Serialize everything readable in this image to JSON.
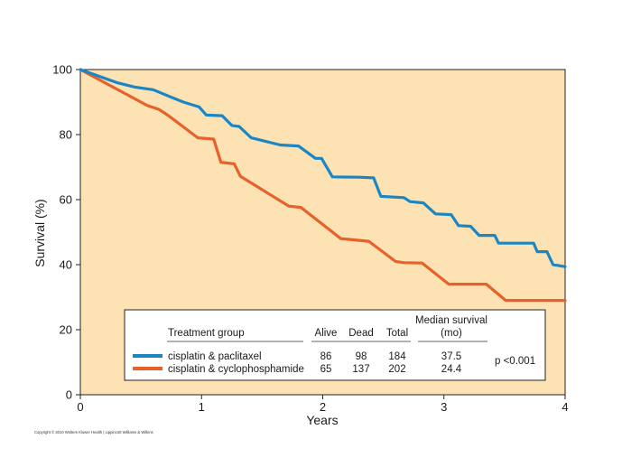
{
  "chart_data": {
    "type": "line",
    "title": "",
    "xlabel": "Years",
    "ylabel": "Survival (%)",
    "xlim": [
      0,
      4
    ],
    "ylim": [
      0,
      100
    ],
    "xticks": [
      "0",
      "1",
      "2",
      "3",
      "4"
    ],
    "yticks": [
      "0",
      "20",
      "40",
      "60",
      "80",
      "100"
    ],
    "grid": false,
    "colors": {
      "background": "#fde3b4",
      "paclitaxel": "#1b86c4",
      "cyclophosphamide": "#e8602a"
    },
    "series": [
      {
        "name": "cisplatin & paclitaxel",
        "color": "#1b86c4",
        "points": [
          [
            0,
            100
          ],
          [
            0.3,
            96
          ],
          [
            0.45,
            94.6
          ],
          [
            0.6,
            93.8
          ],
          [
            0.75,
            91.5
          ],
          [
            0.85,
            90
          ],
          [
            0.98,
            88.5
          ],
          [
            1.04,
            86
          ],
          [
            1.17,
            85.8
          ],
          [
            1.25,
            82.8
          ],
          [
            1.31,
            82.5
          ],
          [
            1.41,
            79
          ],
          [
            1.65,
            76.8
          ],
          [
            1.8,
            76.5
          ],
          [
            1.94,
            72.7
          ],
          [
            1.99,
            72.7
          ],
          [
            2.08,
            67
          ],
          [
            2.3,
            66.9
          ],
          [
            2.42,
            66.7
          ],
          [
            2.48,
            61
          ],
          [
            2.67,
            60.6
          ],
          [
            2.72,
            59.4
          ],
          [
            2.83,
            59
          ],
          [
            2.93,
            55.6
          ],
          [
            3.06,
            55.4
          ],
          [
            3.12,
            52
          ],
          [
            3.22,
            51.8
          ],
          [
            3.29,
            49
          ],
          [
            3.42,
            49
          ],
          [
            3.45,
            46.6
          ],
          [
            3.74,
            46.6
          ],
          [
            3.77,
            44
          ],
          [
            3.85,
            44
          ],
          [
            3.9,
            40
          ],
          [
            4,
            39.4
          ]
        ]
      },
      {
        "name": "cisplatin & cyclophosphamide",
        "color": "#e8602a",
        "points": [
          [
            0,
            100
          ],
          [
            0.3,
            94
          ],
          [
            0.55,
            89
          ],
          [
            0.65,
            87.7
          ],
          [
            0.72,
            86
          ],
          [
            0.97,
            79
          ],
          [
            1.1,
            78.6
          ],
          [
            1.16,
            71.5
          ],
          [
            1.27,
            71
          ],
          [
            1.32,
            67.2
          ],
          [
            1.72,
            58
          ],
          [
            1.82,
            57.6
          ],
          [
            2.15,
            48
          ],
          [
            2.38,
            47.2
          ],
          [
            2.6,
            41
          ],
          [
            2.67,
            40.6
          ],
          [
            2.82,
            40.5
          ],
          [
            3.04,
            34
          ],
          [
            3.35,
            34
          ],
          [
            3.51,
            29
          ],
          [
            4,
            29
          ]
        ]
      }
    ]
  },
  "legend_table": {
    "headers": {
      "group": "Treatment group",
      "alive": "Alive",
      "dead": "Dead",
      "total": "Total",
      "median_line1": "Median survival",
      "median_line2": "(mo)"
    },
    "rows": [
      {
        "label": "cisplatin & paclitaxel",
        "alive": "86",
        "dead": "98",
        "total": "184",
        "median": "37.5",
        "color": "#1b86c4"
      },
      {
        "label": "cisplatin & cyclophosphamide",
        "alive": "65",
        "dead": "137",
        "total": "202",
        "median": "24.4",
        "color": "#e8602a"
      }
    ],
    "p_value": "p <0.001"
  },
  "footer": {
    "copyright": "Copyright © 2010 Wolters Kluwer Health | Lippincott Williams & Wilkins"
  }
}
